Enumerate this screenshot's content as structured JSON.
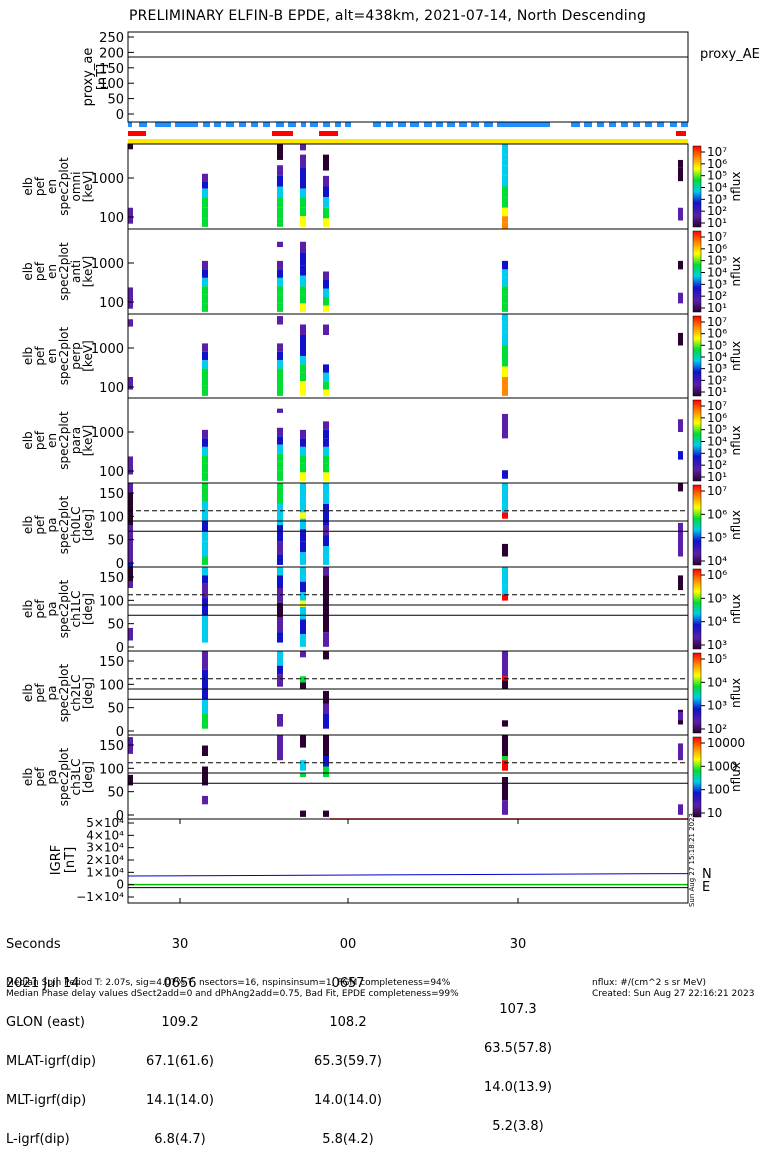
{
  "title": "PRELIMINARY ELFIN-B EPDE, alt=438km, 2021-07-14, North Descending",
  "panels": [
    {
      "id": "proxy",
      "ylabel": [
        "proxy_ae",
        "[nT]"
      ],
      "right_label": "proxy_AE",
      "yticks": [
        "250",
        "200",
        "150",
        "100",
        "50",
        "0"
      ]
    },
    {
      "id": "omni",
      "ylabel": [
        "elb",
        "pef",
        "en",
        "spec2plot",
        "omni",
        "[keV]"
      ],
      "yticks": [
        "1000",
        "100"
      ],
      "cbar_ticks": [
        "10⁷",
        "10⁶",
        "10⁵",
        "10⁴",
        "10³",
        "10²",
        "10¹"
      ],
      "cbar_label": "nflux"
    },
    {
      "id": "anti",
      "ylabel": [
        "elb",
        "pef",
        "en",
        "spec2plot",
        "anti",
        "[keV]"
      ],
      "yticks": [
        "1000",
        "100"
      ],
      "cbar_ticks": [
        "10⁷",
        "10⁶",
        "10⁵",
        "10⁴",
        "10³",
        "10²",
        "10¹"
      ],
      "cbar_label": "nflux"
    },
    {
      "id": "perp",
      "ylabel": [
        "elb",
        "pef",
        "en",
        "spec2plot",
        "perp",
        "[keV]"
      ],
      "yticks": [
        "1000",
        "100"
      ],
      "cbar_ticks": [
        "10⁷",
        "10⁶",
        "10⁵",
        "10⁴",
        "10³",
        "10²",
        "10¹"
      ],
      "cbar_label": "nflux"
    },
    {
      "id": "para",
      "ylabel": [
        "elb",
        "pef",
        "en",
        "spec2plot",
        "para",
        "[keV]"
      ],
      "yticks": [
        "1000",
        "100"
      ],
      "cbar_ticks": [
        "10⁷",
        "10⁶",
        "10⁵",
        "10⁴",
        "10³",
        "10²",
        "10¹"
      ],
      "cbar_label": "nflux"
    },
    {
      "id": "ch0",
      "ylabel": [
        "elb",
        "pef",
        "pa",
        "spec2plot",
        "ch0LC",
        "[deg]"
      ],
      "yticks": [
        "150",
        "100",
        "50",
        "0"
      ],
      "cbar_ticks": [
        "10⁷",
        "10⁶",
        "10⁵",
        "10⁴"
      ],
      "cbar_label": "nflux"
    },
    {
      "id": "ch1",
      "ylabel": [
        "elb",
        "pef",
        "pa",
        "spec2plot",
        "ch1LC",
        "[deg]"
      ],
      "yticks": [
        "150",
        "100",
        "50",
        "0"
      ],
      "cbar_ticks": [
        "10⁶",
        "10⁵",
        "10⁴",
        "10³"
      ],
      "cbar_label": "nflux"
    },
    {
      "id": "ch2",
      "ylabel": [
        "elb",
        "pef",
        "pa",
        "spec2plot",
        "ch2LC",
        "[deg]"
      ],
      "yticks": [
        "150",
        "100",
        "50",
        "0"
      ],
      "cbar_ticks": [
        "10⁵",
        "10⁴",
        "10³",
        "10²"
      ],
      "cbar_label": "nflux"
    },
    {
      "id": "ch3",
      "ylabel": [
        "elb",
        "pef",
        "pa",
        "spec2plot",
        "ch3LC",
        "[deg]"
      ],
      "yticks": [
        "150",
        "100",
        "50",
        "0"
      ],
      "cbar_ticks": [
        "10000",
        "1000",
        "100",
        "10"
      ],
      "cbar_label": "nflux"
    },
    {
      "id": "igrf",
      "ylabel": [
        "IGRF",
        "[nT]"
      ],
      "yticks": [
        "5×10⁴",
        "4×10⁴",
        "3×10⁴",
        "2×10⁴",
        "1×10⁴",
        "0",
        "−1×10⁴"
      ],
      "legend": [
        "N",
        "E"
      ],
      "side_text": "Sun Aug 27 15:18:21 2023"
    }
  ],
  "x_ticks": [
    "30",
    "00",
    "30"
  ],
  "bottom_rows": [
    {
      "label": "Seconds",
      "values": [
        "30",
        "00",
        "30"
      ]
    },
    {
      "label": "2021 Jul 14",
      "values": [
        "0656",
        "0657",
        ""
      ]
    },
    {
      "label": "GLON (east)",
      "values": [
        "109.2",
        "108.2",
        "107.3"
      ]
    },
    {
      "label": "MLAT-igrf(dip)",
      "values": [
        "67.1(61.6)",
        "65.3(59.7)",
        "63.5(57.8)"
      ]
    },
    {
      "label": "MLT-igrf(dip)",
      "values": [
        "14.1(14.0)",
        "14.0(14.0)",
        "14.0(13.9)"
      ]
    },
    {
      "label": "L-igrf(dip)",
      "values": [
        "6.8(4.7)",
        "5.8(4.2)",
        "5.2(3.8)"
      ]
    }
  ],
  "footer": {
    "line1": "Median Spin Period T: 2.07s, sig=4.07% T, nsectors=16, nspinsinsum=1, FGM completeness=94%",
    "line2": "Median Phase delay values dSect2add=0 and dPhAng2add=0.75, Bad Fit, EPDE completeness=99%",
    "units": "nflux: #/(cm^2 s sr MeV)",
    "created": "Created: Sun Aug 27 22:16:21 2023"
  },
  "colors": {
    "proxy_line": "#000000",
    "blue_bar": "#1e90ff",
    "red_bar": "#ff0000",
    "yellow_bar": "#ffe800",
    "igrf_N": "#0000cc",
    "igrf_E": "#00bb00",
    "igrf_red": "#ff0000"
  },
  "chart_data": {
    "type": "heatmap",
    "x_range_seconds": [
      -45,
      55
    ],
    "proxy_ae": {
      "ylim": [
        -20,
        260
      ],
      "values": [
        185,
        185
      ]
    },
    "igrf": {
      "ylim": [
        -10000,
        50000
      ],
      "N": [
        7000,
        9000
      ],
      "E": [
        0,
        0
      ]
    }
  }
}
